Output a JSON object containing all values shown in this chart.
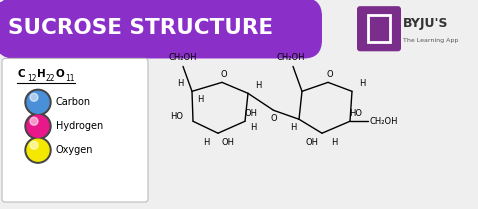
{
  "title": "SUCROSE STRUCTURE",
  "title_bg_color": "#8B2FC9",
  "title_text_color": "#FFFFFF",
  "body_bg_color": "#EFEFEF",
  "legend_items": [
    {
      "label": "Carbon",
      "color": "#4A90D9"
    },
    {
      "label": "Hydrogen",
      "color": "#E8178A"
    },
    {
      "label": "Oxygen",
      "color": "#F5E800"
    }
  ],
  "byjus_purple": "#7B2D8B",
  "byjus_text": "BYJU'S",
  "byjus_sub": "The Learning App"
}
